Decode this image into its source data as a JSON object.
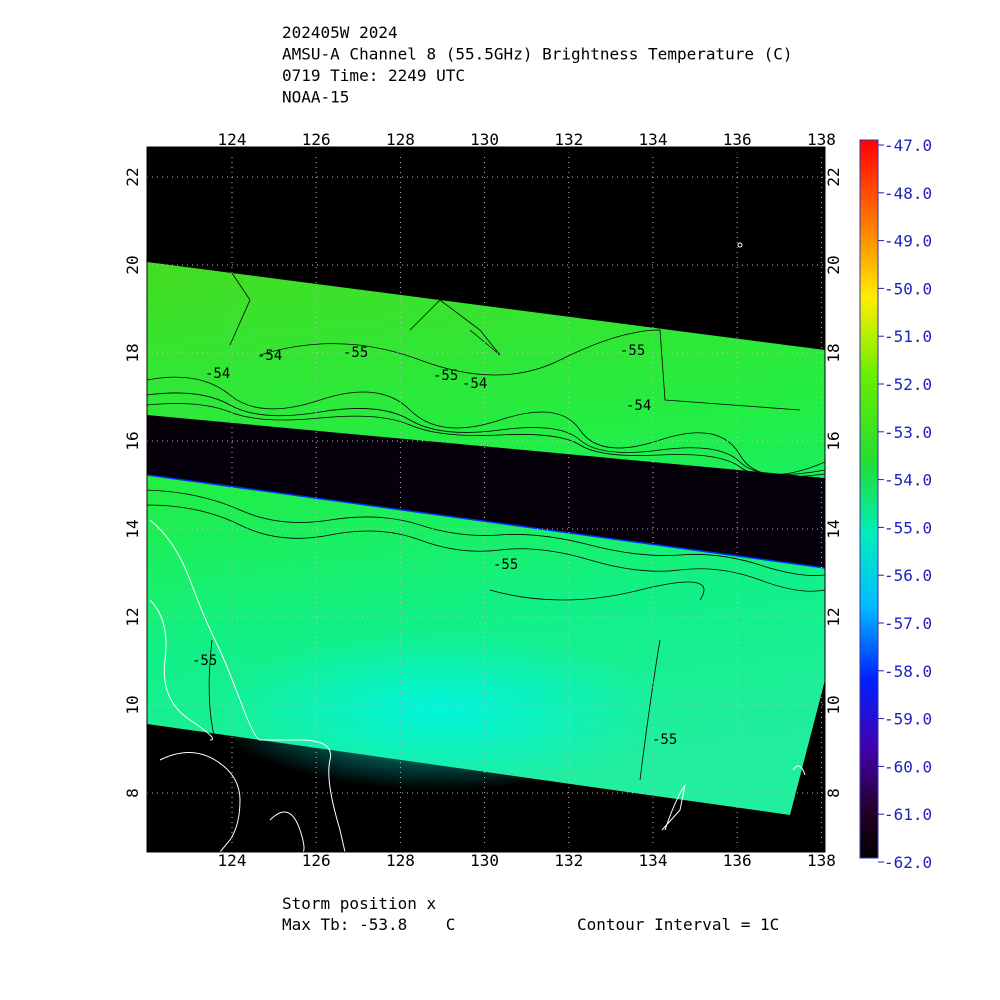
{
  "header": {
    "lines": [
      "202405W 2024",
      "AMSU-A Channel 8 (55.5GHz) Brightness Temperature (C)",
      "0719 Time: 2249 UTC",
      "NOAA-15"
    ]
  },
  "map": {
    "lon_ticks": [
      "124",
      "126",
      "128",
      "130",
      "132",
      "134",
      "136",
      "138"
    ],
    "lat_ticks": [
      "8",
      "10",
      "12",
      "14",
      "16",
      "18",
      "20",
      "22"
    ],
    "contour_labels": [
      "-54",
      "-54",
      "-55",
      "-55",
      "-54",
      "-55",
      "-54",
      "-55",
      "-55",
      "-55"
    ]
  },
  "colorbar": {
    "labels": [
      "-47.0",
      "-48.0",
      "-49.0",
      "-50.0",
      "-51.0",
      "-52.0",
      "-53.0",
      "-54.0",
      "-55.0",
      "-56.0",
      "-57.0",
      "-58.0",
      "-59.0",
      "-60.0",
      "-61.0",
      "-62.0"
    ]
  },
  "footer": {
    "storm": "Storm position x",
    "max_tb": "Max Tb: -53.8    C",
    "contour": "Contour Interval = 1C"
  }
}
